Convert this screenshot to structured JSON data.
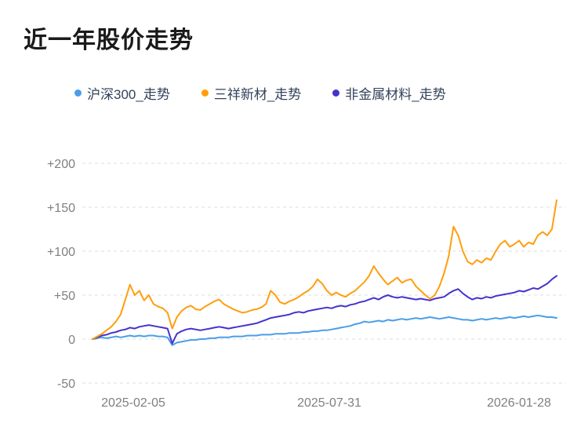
{
  "page": {
    "title": "近一年股价走势"
  },
  "legend": [
    {
      "label": "沪深300_走势",
      "color": "#4a9ee8"
    },
    {
      "label": "三祥新材_走势",
      "color": "#ff9e0d"
    },
    {
      "label": "非金属材料_走势",
      "color": "#4433cc"
    }
  ],
  "chart_data": {
    "type": "line",
    "title": "近一年股价走势",
    "ylabel": "",
    "xlabel": "",
    "ylim": [
      -50,
      200
    ],
    "grid": "horizontal-dashed",
    "legend_position": "top",
    "x_tick_labels": [
      "2025-02-05",
      "2025-07-31",
      "2026-01-28"
    ],
    "y_ticks": [
      {
        "value": 200,
        "label": "+200"
      },
      {
        "value": 150,
        "label": "+150"
      },
      {
        "value": 100,
        "label": "+100"
      },
      {
        "value": 50,
        "label": "+50"
      },
      {
        "value": 0,
        "label": "0"
      },
      {
        "value": -50,
        "label": "-50"
      }
    ],
    "series": [
      {
        "name": "沪深300_走势",
        "color": "#4a9ee8",
        "values": [
          0,
          1,
          2,
          1,
          2,
          3,
          2,
          3,
          4,
          3,
          4,
          3,
          4,
          4,
          3,
          3,
          2,
          -7,
          -4,
          -3,
          -2,
          -1,
          -1,
          0,
          0,
          1,
          1,
          2,
          2,
          2,
          3,
          3,
          3,
          4,
          4,
          4,
          5,
          5,
          5,
          6,
          6,
          6,
          7,
          7,
          7,
          8,
          8,
          9,
          9,
          10,
          10,
          11,
          12,
          13,
          14,
          15,
          17,
          18,
          20,
          19,
          20,
          21,
          20,
          22,
          21,
          22,
          23,
          22,
          23,
          24,
          23,
          24,
          25,
          24,
          23,
          24,
          25,
          24,
          23,
          22,
          22,
          21,
          22,
          23,
          22,
          23,
          24,
          23,
          24,
          25,
          24,
          25,
          26,
          25,
          26,
          27,
          26,
          25,
          25,
          24
        ]
      },
      {
        "name": "非金属材料_走势",
        "color": "#4433cc",
        "values": [
          0,
          2,
          4,
          5,
          7,
          8,
          10,
          11,
          13,
          12,
          14,
          15,
          16,
          15,
          14,
          13,
          12,
          -5,
          6,
          9,
          11,
          12,
          11,
          10,
          11,
          12,
          13,
          14,
          13,
          12,
          13,
          14,
          15,
          16,
          17,
          18,
          20,
          22,
          24,
          25,
          26,
          27,
          28,
          30,
          31,
          30,
          32,
          33,
          34,
          35,
          36,
          35,
          37,
          38,
          37,
          39,
          40,
          42,
          43,
          45,
          47,
          45,
          48,
          50,
          48,
          47,
          48,
          47,
          46,
          45,
          46,
          45,
          44,
          46,
          47,
          48,
          52,
          55,
          57,
          52,
          48,
          45,
          47,
          46,
          48,
          47,
          49,
          50,
          51,
          52,
          53,
          55,
          54,
          56,
          58,
          57,
          60,
          63,
          68,
          72
        ]
      },
      {
        "name": "三祥新材_走势",
        "color": "#ff9e0d",
        "values": [
          0,
          3,
          6,
          10,
          14,
          20,
          28,
          45,
          62,
          50,
          55,
          44,
          50,
          40,
          37,
          35,
          30,
          12,
          25,
          32,
          36,
          38,
          34,
          33,
          37,
          40,
          43,
          45,
          40,
          37,
          34,
          32,
          30,
          31,
          33,
          34,
          36,
          40,
          55,
          50,
          42,
          40,
          43,
          45,
          48,
          52,
          55,
          60,
          68,
          63,
          55,
          50,
          53,
          50,
          48,
          52,
          55,
          60,
          65,
          72,
          83,
          75,
          68,
          62,
          66,
          70,
          64,
          67,
          68,
          60,
          55,
          50,
          46,
          50,
          60,
          75,
          95,
          128,
          118,
          100,
          88,
          85,
          90,
          87,
          92,
          90,
          100,
          108,
          112,
          105,
          108,
          112,
          105,
          110,
          108,
          118,
          122,
          118,
          125,
          158
        ]
      }
    ]
  }
}
